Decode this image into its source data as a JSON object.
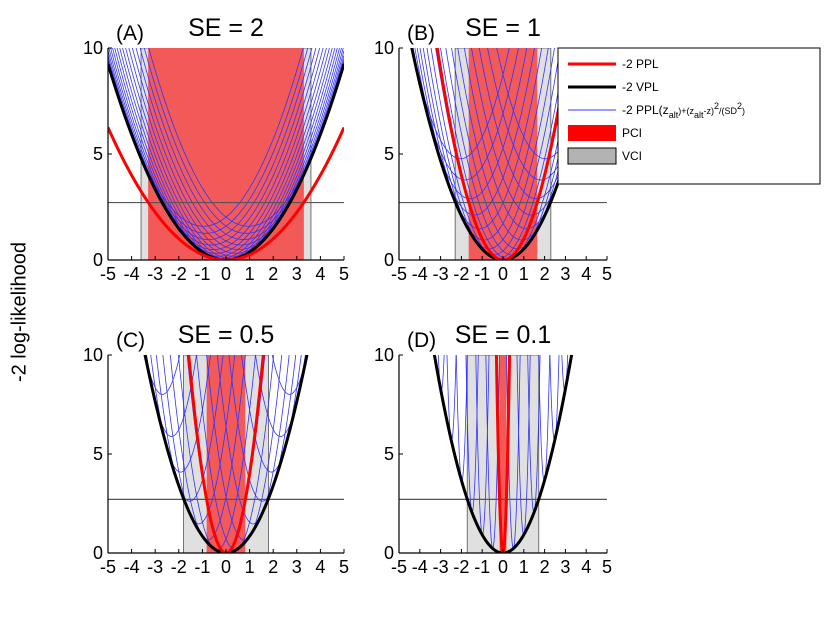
{
  "chart_data": {
    "type": "line",
    "ylabel": "-2 log-likelihood",
    "threshold_line": 2.71,
    "x_range": [
      -5,
      5
    ],
    "y_range": [
      0,
      10
    ],
    "xticks": [
      -5,
      -4,
      -3,
      -2,
      -1,
      0,
      1,
      2,
      3,
      4,
      5
    ],
    "xtick_labels": [
      "-5",
      "-4",
      "-3",
      "-2",
      "-1",
      "0",
      "1",
      "2",
      "3",
      "4",
      "5"
    ],
    "yticks": [
      0,
      5,
      10
    ],
    "ytick_labels": [
      "0",
      "5",
      "10"
    ],
    "legend": {
      "placement": "right of panel (B)",
      "entries": [
        {
          "id": "ppl",
          "label": "-2 PPL",
          "kind": "line",
          "color": "#ff0000"
        },
        {
          "id": "vpl",
          "label": "-2 VPL",
          "kind": "line",
          "color": "#000000"
        },
        {
          "id": "prof",
          "label": "-2 PPL(z_alt)+(z_alt-z)^2/(SD^2)",
          "kind": "line",
          "color": "#3333ff",
          "rich": {
            "a": "-2 PPL(z",
            "s1": "alt",
            "b": ")+(z",
            "s2": "alt",
            "c": "-z)",
            "p1": "2",
            "d": "/(SD",
            "p2": "2",
            "e": ")"
          }
        },
        {
          "id": "pci",
          "label": "PCI",
          "kind": "patch",
          "color": "#ff0000"
        },
        {
          "id": "vci",
          "label": "VCI",
          "kind": "patch",
          "color": "#b3b3b3"
        }
      ]
    },
    "panels": [
      {
        "id": "A",
        "label": "(A)",
        "title": "SE = 2",
        "se": 2,
        "vpl_curvature": 0.37,
        "vci": [
          -3.6,
          3.6
        ],
        "pci": [
          -3.3,
          3.3
        ]
      },
      {
        "id": "B",
        "label": "(B)",
        "title": "SE = 1",
        "se": 1,
        "vpl_curvature": 0.52,
        "vci": [
          -2.3,
          2.3
        ],
        "pci": [
          -1.65,
          1.65
        ]
      },
      {
        "id": "C",
        "label": "(C)",
        "title": "SE = 0.5",
        "se": 0.5,
        "vpl_curvature": 0.85,
        "vci": [
          -1.8,
          1.8
        ],
        "pci": [
          -0.82,
          0.82
        ]
      },
      {
        "id": "D",
        "label": "(D)",
        "title": "SE = 0.1",
        "se": 0.1,
        "vpl_curvature": 0.92,
        "vci": [
          -1.72,
          1.72
        ],
        "pci": [
          -0.165,
          0.165
        ]
      }
    ],
    "colors": {
      "ppl": "#ff0000",
      "vpl": "#000000",
      "profile": "#3333ff",
      "pci_fill": "#f25a5a",
      "vci_fill": "#e0e0e0",
      "threshold": "#555555"
    }
  }
}
